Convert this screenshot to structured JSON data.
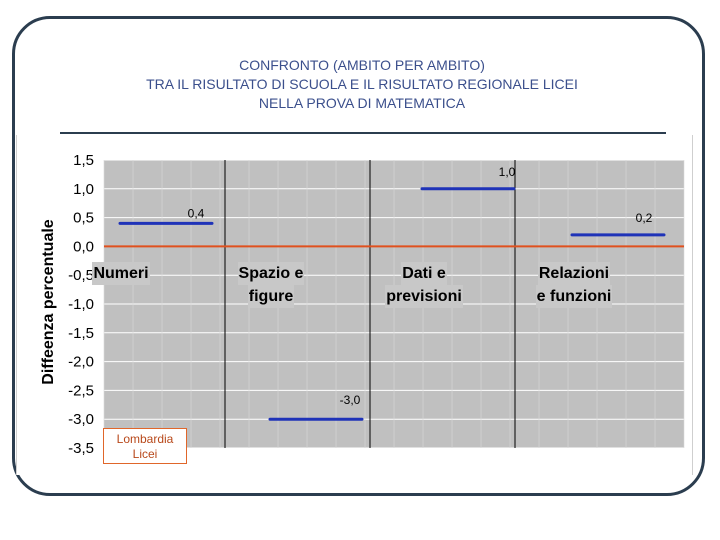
{
  "title_lines": [
    "CONFRONTO (AMBITO PER AMBITO)",
    "TRA IL RISULTATO DI SCUOLA E IL RISULTATO REGIONALE LICEI",
    "NELLA PROVA DI MATEMATICA"
  ],
  "colors": {
    "frame": "#2b3d4f",
    "title": "#3b4f8c",
    "plot_bg": "#c0c0c0",
    "series_line": "#1f33b8",
    "reference_line": "#e0501e"
  },
  "chart_data": {
    "type": "line",
    "ylabel": "Diffeenza percentuale",
    "xlabel": "",
    "ylim": [
      -3.5,
      1.5
    ],
    "yticks": [
      "1,5",
      "1,0",
      "0,5",
      "0,0",
      "-0,5",
      "-1,0",
      "-1,5",
      "-2,0",
      "-2,5",
      "-3,0",
      "-3,5"
    ],
    "categories": [
      [
        "Numeri"
      ],
      [
        "Spazio e",
        "figure"
      ],
      [
        "Dati e",
        "previsioni"
      ],
      [
        "Relazioni",
        "e funzioni"
      ]
    ],
    "values": [
      0.4,
      -3.0,
      1.0,
      0.2
    ],
    "data_labels": [
      "0,4",
      "-3,0",
      "1,0",
      "0,2"
    ],
    "reference_line": 0.0,
    "grid": true,
    "legend": {
      "entries": [
        "Lombardia",
        "Licei"
      ],
      "placement": "bottom-left"
    }
  }
}
